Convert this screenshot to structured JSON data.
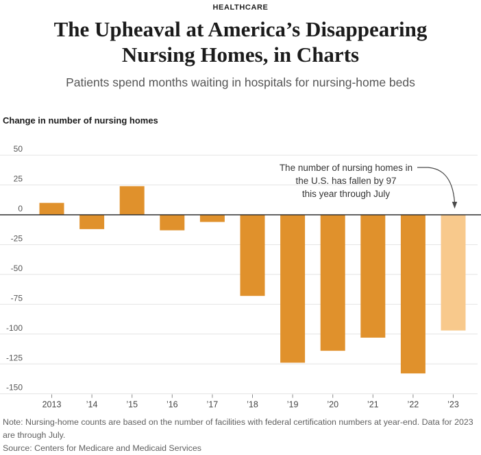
{
  "page": {
    "kicker": "HEALTHCARE",
    "title_line1": "The Upheaval at America’s Disappearing",
    "title_line2": "Nursing Homes, in Charts",
    "subtitle": "Patients spend months waiting in hospitals for nursing-home beds",
    "note": "Note: Nursing-home counts are based on the number of facilities with federal certification numbers at year-end. Data for 2023 are through July.",
    "source": "Source: Centers for Medicare and Medicaid Services"
  },
  "chart_data": {
    "type": "bar",
    "title": "Change in number of nursing homes",
    "categories": [
      "2013",
      "’14",
      "’15",
      "’16",
      "’17",
      "’18",
      "’19",
      "’20",
      "’21",
      "’22",
      "’23"
    ],
    "values": [
      10,
      -12,
      24,
      -13,
      -6,
      -68,
      -124,
      -114,
      -103,
      -133,
      -97
    ],
    "highlight_index": 10,
    "xlabel": "",
    "ylabel": "Change in number of nursing homes",
    "ylim": [
      -150,
      50
    ],
    "yticks": [
      50,
      25,
      0,
      -25,
      -50,
      -75,
      -100,
      -125,
      -150
    ],
    "grid": true,
    "legend": false,
    "colors": {
      "bar": "#E0912C",
      "bar_highlight": "#F8C98C",
      "zero_line": "#2f2f2f",
      "gridline": "#e4e4e4",
      "tick": "#8a8a8a",
      "y_label": "#555555",
      "x_label": "#444444",
      "arrow": "#4a4a4a"
    },
    "annotation": {
      "lines": [
        "The number of nursing homes in",
        "the U.S. has fallen by 97",
        "this year through July"
      ],
      "points_to": "’23"
    }
  }
}
